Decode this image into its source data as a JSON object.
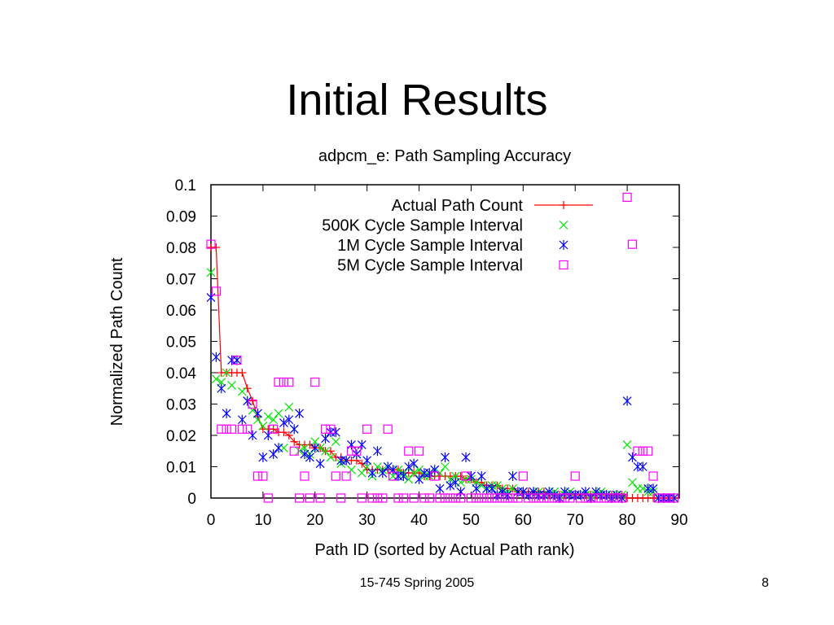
{
  "slide": {
    "title": "Initial Results",
    "footer": "15-745 Spring 2005",
    "page_number": "8"
  },
  "chart_data": {
    "type": "scatter",
    "title": "adpcm_e: Path Sampling Accuracy",
    "xlabel": "Path ID (sorted by Actual Path rank)",
    "ylabel": "Normalized Path Count",
    "xlim": [
      0,
      90
    ],
    "ylim": [
      0,
      0.1
    ],
    "xticks": [
      0,
      10,
      20,
      30,
      40,
      50,
      60,
      70,
      80,
      90
    ],
    "yticks": [
      0,
      0.01,
      0.02,
      0.03,
      0.04,
      0.05,
      0.06,
      0.07,
      0.08,
      0.09,
      0.1
    ],
    "ytick_labels": [
      "0",
      "0.01",
      "0.02",
      "0.03",
      "0.04",
      "0.05",
      "0.06",
      "0.07",
      "0.08",
      "0.09",
      "0.1"
    ],
    "grid": false,
    "legend_position": "top-right",
    "series": [
      {
        "name": "Actual Path Count",
        "marker": "plus",
        "line": true,
        "color": "#ff0000",
        "x": [
          0,
          1,
          2,
          3,
          4,
          5,
          6,
          7,
          8,
          9,
          10,
          11,
          12,
          13,
          14,
          15,
          16,
          17,
          18,
          19,
          20,
          21,
          22,
          23,
          24,
          25,
          26,
          27,
          28,
          29,
          30,
          31,
          32,
          33,
          34,
          35,
          36,
          37,
          38,
          39,
          40,
          41,
          42,
          43,
          44,
          45,
          46,
          47,
          48,
          49,
          50,
          51,
          52,
          53,
          54,
          55,
          56,
          57,
          58,
          59,
          60,
          61,
          62,
          63,
          64,
          65,
          66,
          67,
          68,
          69,
          70,
          71,
          72,
          73,
          74,
          75,
          76,
          77,
          78,
          79,
          80,
          81,
          82,
          83,
          84,
          85,
          86,
          87,
          88,
          89
        ],
        "y": [
          0.08,
          0.08,
          0.04,
          0.04,
          0.04,
          0.04,
          0.04,
          0.035,
          0.031,
          0.026,
          0.022,
          0.022,
          0.022,
          0.021,
          0.021,
          0.02,
          0.018,
          0.017,
          0.017,
          0.017,
          0.016,
          0.016,
          0.015,
          0.015,
          0.013,
          0.013,
          0.012,
          0.012,
          0.012,
          0.011,
          0.009,
          0.009,
          0.009,
          0.009,
          0.009,
          0.009,
          0.009,
          0.008,
          0.008,
          0.008,
          0.008,
          0.007,
          0.007,
          0.007,
          0.007,
          0.007,
          0.007,
          0.007,
          0.007,
          0.006,
          0.006,
          0.005,
          0.005,
          0.004,
          0.004,
          0.004,
          0.003,
          0.003,
          0.003,
          0.002,
          0.002,
          0.002,
          0.002,
          0.002,
          0.002,
          0.001,
          0.001,
          0.001,
          0.001,
          0.001,
          0.001,
          0.001,
          0.001,
          0.001,
          0.001,
          0.001,
          0.001,
          0.001,
          0.001,
          0.001,
          0.0,
          0.0,
          0.0,
          0.0,
          0.0,
          0.0,
          0.0,
          0.0,
          0.0,
          0.0
        ]
      },
      {
        "name": "500K Cycle Sample Interval",
        "marker": "x",
        "color": "#00e600",
        "x": [
          0,
          1,
          2,
          3,
          4,
          5,
          6,
          7,
          8,
          9,
          10,
          11,
          12,
          13,
          14,
          15,
          16,
          17,
          18,
          19,
          20,
          21,
          22,
          23,
          24,
          25,
          26,
          27,
          28,
          29,
          30,
          31,
          32,
          33,
          34,
          35,
          36,
          37,
          38,
          39,
          40,
          41,
          42,
          43,
          44,
          45,
          46,
          47,
          48,
          49,
          50,
          51,
          52,
          53,
          54,
          55,
          56,
          57,
          58,
          59,
          60,
          61,
          62,
          63,
          64,
          65,
          66,
          67,
          68,
          69,
          70,
          71,
          72,
          73,
          74,
          75,
          76,
          77,
          78,
          79,
          80,
          81,
          82,
          83,
          84,
          85,
          86,
          87,
          88,
          89
        ],
        "y": [
          0.072,
          0.038,
          0.037,
          0.04,
          0.036,
          0.044,
          0.034,
          0.031,
          0.028,
          0.025,
          0.023,
          0.026,
          0.025,
          0.027,
          0.016,
          0.029,
          0.022,
          0.015,
          0.016,
          0.014,
          0.018,
          0.016,
          0.015,
          0.013,
          0.018,
          0.011,
          0.012,
          0.009,
          0.014,
          0.008,
          0.01,
          0.007,
          0.01,
          0.009,
          0.01,
          0.007,
          0.009,
          0.008,
          0.006,
          0.008,
          0.009,
          0.007,
          0.007,
          0.009,
          0.008,
          0.01,
          0.006,
          0.007,
          0.005,
          0.006,
          0.006,
          0.005,
          0.004,
          0.003,
          0.004,
          0.004,
          0.003,
          0.002,
          0.003,
          0.002,
          0.002,
          0.001,
          0.002,
          0.002,
          0.001,
          0.001,
          0.002,
          0.001,
          0.001,
          0.002,
          0.001,
          0.001,
          0.001,
          0.001,
          0.001,
          0.002,
          0.001,
          0.001,
          0.001,
          0.001,
          0.017,
          0.005,
          0.003,
          0.003,
          0.002,
          0.002,
          0.0,
          0.0,
          0.0,
          0.0
        ]
      },
      {
        "name": "1M Cycle Sample Interval",
        "marker": "star",
        "color": "#0000ff",
        "x": [
          0,
          1,
          2,
          3,
          4,
          5,
          6,
          7,
          8,
          9,
          10,
          11,
          12,
          13,
          14,
          15,
          16,
          17,
          18,
          19,
          20,
          21,
          22,
          23,
          24,
          25,
          26,
          27,
          28,
          29,
          30,
          31,
          32,
          33,
          34,
          35,
          36,
          37,
          38,
          39,
          40,
          41,
          42,
          43,
          44,
          45,
          46,
          47,
          48,
          49,
          50,
          51,
          52,
          53,
          54,
          55,
          56,
          57,
          58,
          59,
          60,
          61,
          62,
          63,
          64,
          65,
          66,
          67,
          68,
          69,
          70,
          71,
          72,
          73,
          74,
          75,
          76,
          77,
          78,
          79,
          80,
          81,
          82,
          83,
          84,
          85,
          86,
          87,
          88,
          89
        ],
        "y": [
          0.064,
          0.045,
          0.035,
          0.027,
          0.044,
          0.044,
          0.025,
          0.031,
          0.02,
          0.027,
          0.013,
          0.02,
          0.014,
          0.016,
          0.024,
          0.025,
          0.022,
          0.027,
          0.014,
          0.013,
          0.016,
          0.011,
          0.019,
          0.021,
          0.021,
          0.012,
          0.012,
          0.017,
          0.014,
          0.017,
          0.012,
          0.008,
          0.015,
          0.008,
          0.01,
          0.009,
          0.007,
          0.007,
          0.01,
          0.011,
          0.006,
          0.008,
          0.008,
          0.009,
          0.003,
          0.013,
          0.004,
          0.005,
          0.002,
          0.013,
          0.007,
          0.003,
          0.007,
          0.003,
          0.003,
          0.001,
          0.002,
          0.001,
          0.007,
          0.002,
          0.002,
          0.001,
          0.002,
          0.001,
          0.001,
          0.002,
          0.001,
          0.0,
          0.002,
          0.001,
          0.001,
          0.001,
          0.002,
          0.0,
          0.002,
          0.001,
          0.001,
          0.0,
          0.001,
          0.0,
          0.031,
          0.013,
          0.01,
          0.01,
          0.003,
          0.003,
          0.0,
          0.0,
          0.0,
          0.0
        ]
      },
      {
        "name": "5M Cycle Sample Interval",
        "marker": "square",
        "color": "#ff00ff",
        "x": [
          0,
          1,
          2,
          3,
          4,
          5,
          6,
          7,
          8,
          9,
          10,
          11,
          12,
          13,
          14,
          15,
          16,
          17,
          18,
          19,
          20,
          21,
          22,
          23,
          24,
          25,
          26,
          27,
          28,
          29,
          30,
          31,
          32,
          33,
          34,
          35,
          36,
          37,
          38,
          39,
          40,
          41,
          42,
          43,
          44,
          45,
          46,
          47,
          48,
          49,
          50,
          51,
          52,
          53,
          54,
          55,
          56,
          57,
          58,
          59,
          60,
          61,
          62,
          63,
          64,
          65,
          66,
          67,
          68,
          69,
          70,
          71,
          72,
          73,
          74,
          75,
          76,
          77,
          78,
          79,
          80,
          81,
          82,
          83,
          84,
          85,
          86,
          87,
          88,
          89
        ],
        "y": [
          0.081,
          0.066,
          0.022,
          0.022,
          0.022,
          0.044,
          0.022,
          0.022,
          0.03,
          0.007,
          0.007,
          0.0,
          0.022,
          0.037,
          0.037,
          0.037,
          0.015,
          0.0,
          0.007,
          0.0,
          0.037,
          0.0,
          0.022,
          0.022,
          0.007,
          0.0,
          0.007,
          0.015,
          0.015,
          0.0,
          0.022,
          0.0,
          0.0,
          0.0,
          0.022,
          0.007,
          0.0,
          0.0,
          0.015,
          0.0,
          0.015,
          0.0,
          0.0,
          0.007,
          0.0,
          0.0,
          0.0,
          0.0,
          0.0,
          0.007,
          0.0,
          0.0,
          0.0,
          0.0,
          0.0,
          0.0,
          0.0,
          0.0,
          0.0,
          0.0,
          0.007,
          0.0,
          0.0,
          0.0,
          0.0,
          0.0,
          0.0,
          0.0,
          0.0,
          0.0,
          0.007,
          0.0,
          0.0,
          0.0,
          0.0,
          0.0,
          0.0,
          0.0,
          0.0,
          0.0,
          0.096,
          0.081,
          0.015,
          0.015,
          0.015,
          0.007,
          0.0,
          0.0,
          0.0,
          0.0
        ]
      }
    ]
  }
}
